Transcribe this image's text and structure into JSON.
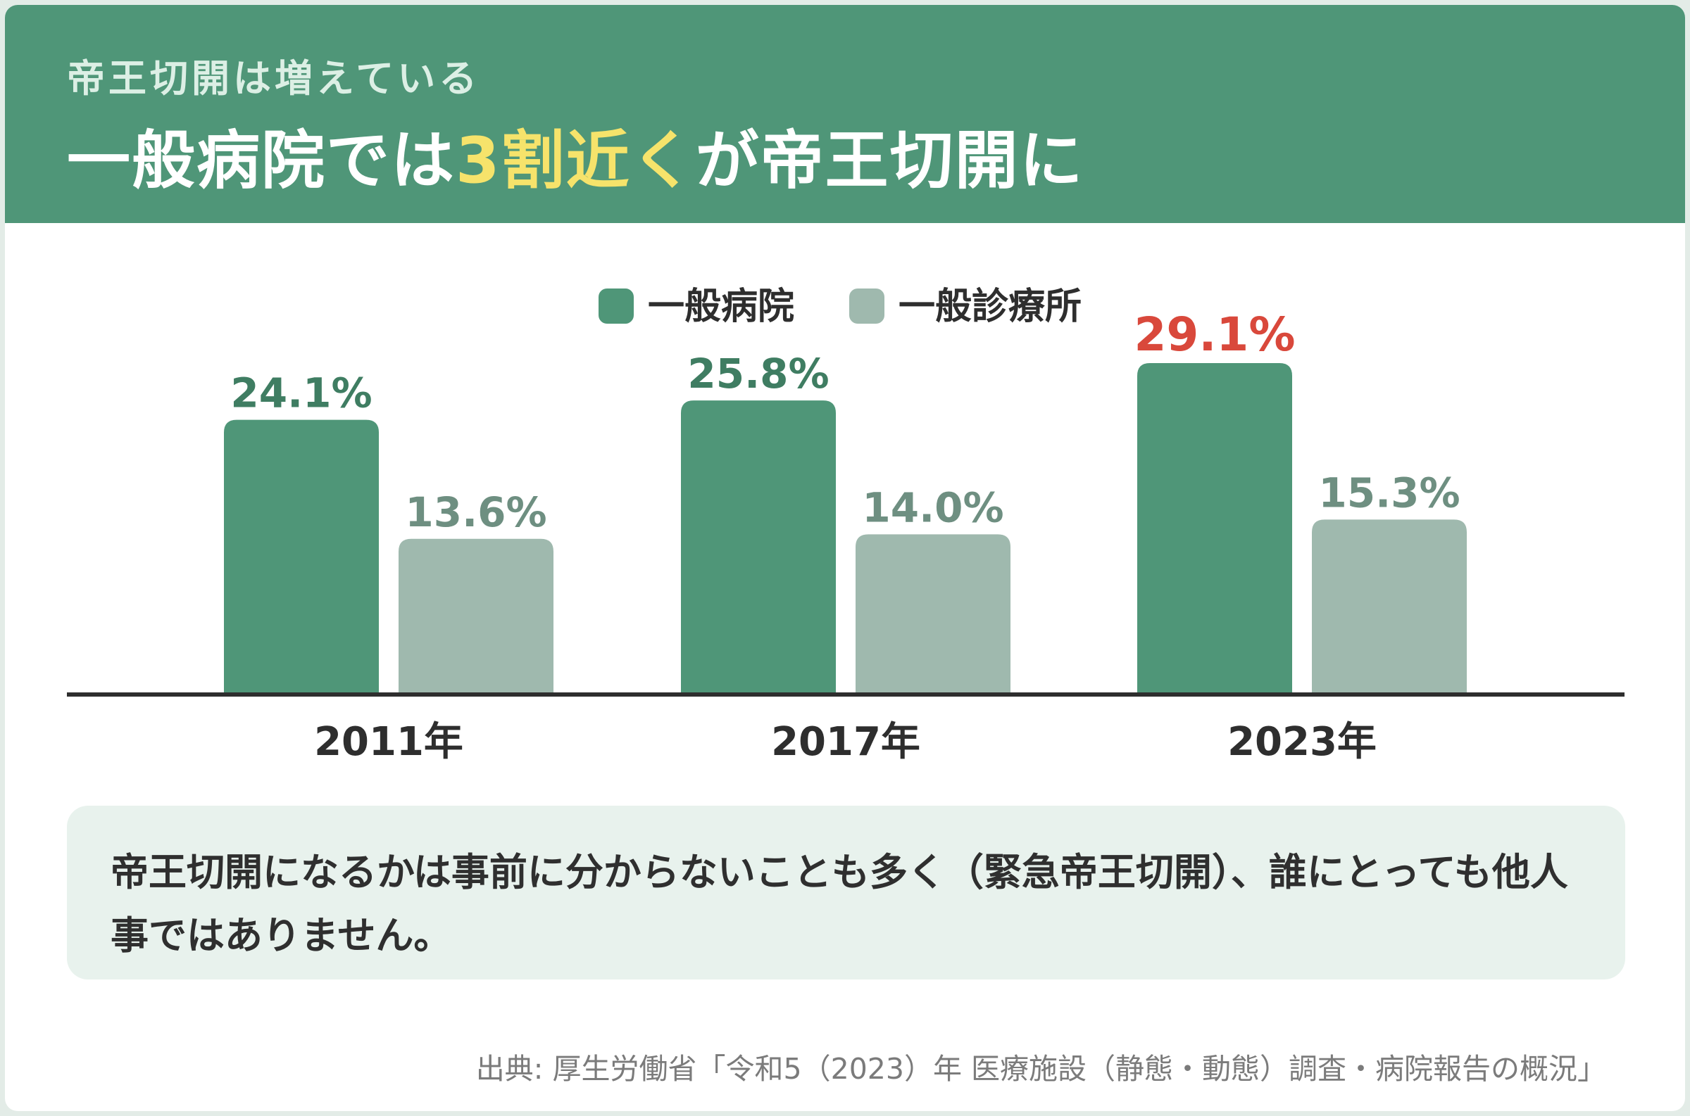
{
  "header": {
    "subtitle": "帝王切開は増えている",
    "title_pre": "一般病院では",
    "title_highlight": "3割近く",
    "title_post": "が帝王切開に"
  },
  "colors": {
    "header_bg": "#4f9678",
    "highlight": "#f6e36b",
    "series_hospital": "#4f9678",
    "series_clinic": "#9fb9ae",
    "label_hospital": "#3f7d62",
    "label_clinic": "#6e8f81",
    "label_emphasis": "#d9483b"
  },
  "chart_data": {
    "type": "bar",
    "categories": [
      "2011年",
      "2017年",
      "2023年"
    ],
    "series": [
      {
        "name": "一般病院",
        "values": [
          24.1,
          25.8,
          29.1
        ],
        "labels": [
          "24.1%",
          "25.8%",
          "29.1%"
        ]
      },
      {
        "name": "一般診療所",
        "values": [
          13.6,
          14.0,
          15.3
        ],
        "labels": [
          "13.6%",
          "14.0%",
          "15.3%"
        ]
      }
    ],
    "emphasized_label": {
      "series": 0,
      "index": 2
    },
    "ylim": [
      0,
      35
    ],
    "grid": false,
    "legend_position": "top-center"
  },
  "note": {
    "text": "帝王切開になるかは事前に分からないことも多く（緊急帝王切開）、誰にとっても他人事ではありません。"
  },
  "source": "出典: 厚生労働省「令和5（2023）年 医療施設（静態・動態）調査・病院報告の概況」"
}
